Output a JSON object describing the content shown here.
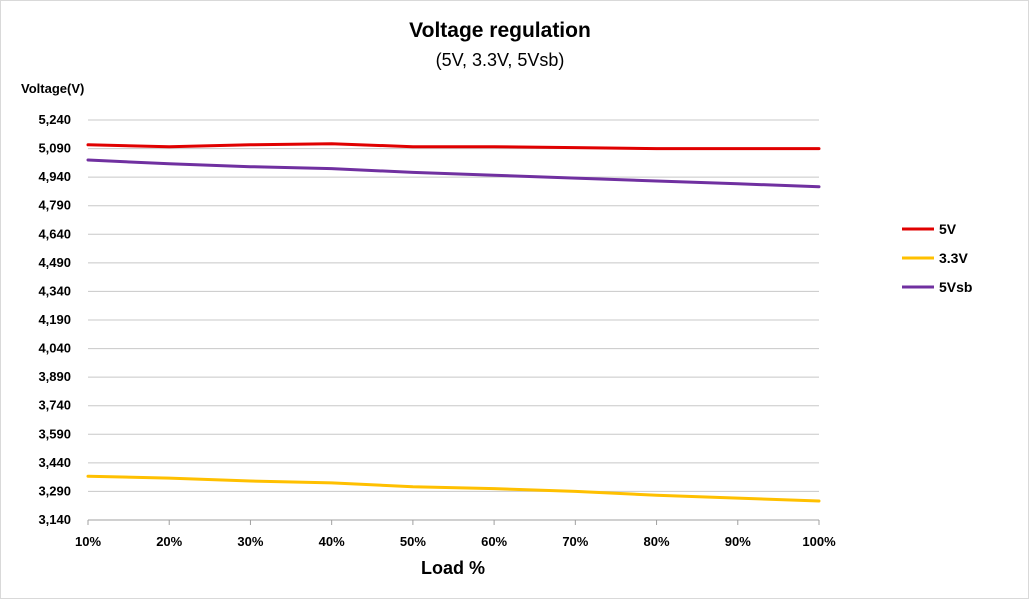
{
  "chart_data": {
    "type": "line",
    "title": "Voltage regulation",
    "subtitle": "(5V, 3.3V, 5Vsb)",
    "xlabel": "Load %",
    "ylabel": "Voltage(V)",
    "categories": [
      "10%",
      "20%",
      "30%",
      "40%",
      "50%",
      "60%",
      "70%",
      "80%",
      "90%",
      "100%"
    ],
    "ylim": [
      3.14,
      5.24
    ],
    "yticks": [
      3.14,
      3.29,
      3.44,
      3.59,
      3.74,
      3.89,
      4.04,
      4.19,
      4.34,
      4.49,
      4.64,
      4.79,
      4.94,
      5.09,
      5.24
    ],
    "ytick_labels": [
      "3,140",
      "3,290",
      "3,440",
      "3,590",
      "3,740",
      "3,890",
      "4,040",
      "4,190",
      "4,340",
      "4,490",
      "4,640",
      "4,790",
      "4,940",
      "5,090",
      "5,240"
    ],
    "grid": true,
    "legend_position": "right",
    "series": [
      {
        "name": "5V",
        "color": "#e00000",
        "values": [
          5.11,
          5.1,
          5.11,
          5.115,
          5.1,
          5.1,
          5.095,
          5.09,
          5.09,
          5.09
        ]
      },
      {
        "name": "3.3V",
        "color": "#ffc000",
        "values": [
          3.37,
          3.36,
          3.345,
          3.335,
          3.315,
          3.305,
          3.29,
          3.27,
          3.255,
          3.24
        ]
      },
      {
        "name": "5Vsb",
        "color": "#7030a0",
        "values": [
          5.03,
          5.01,
          4.995,
          4.985,
          4.965,
          4.95,
          4.935,
          4.92,
          4.905,
          4.89
        ]
      }
    ]
  }
}
